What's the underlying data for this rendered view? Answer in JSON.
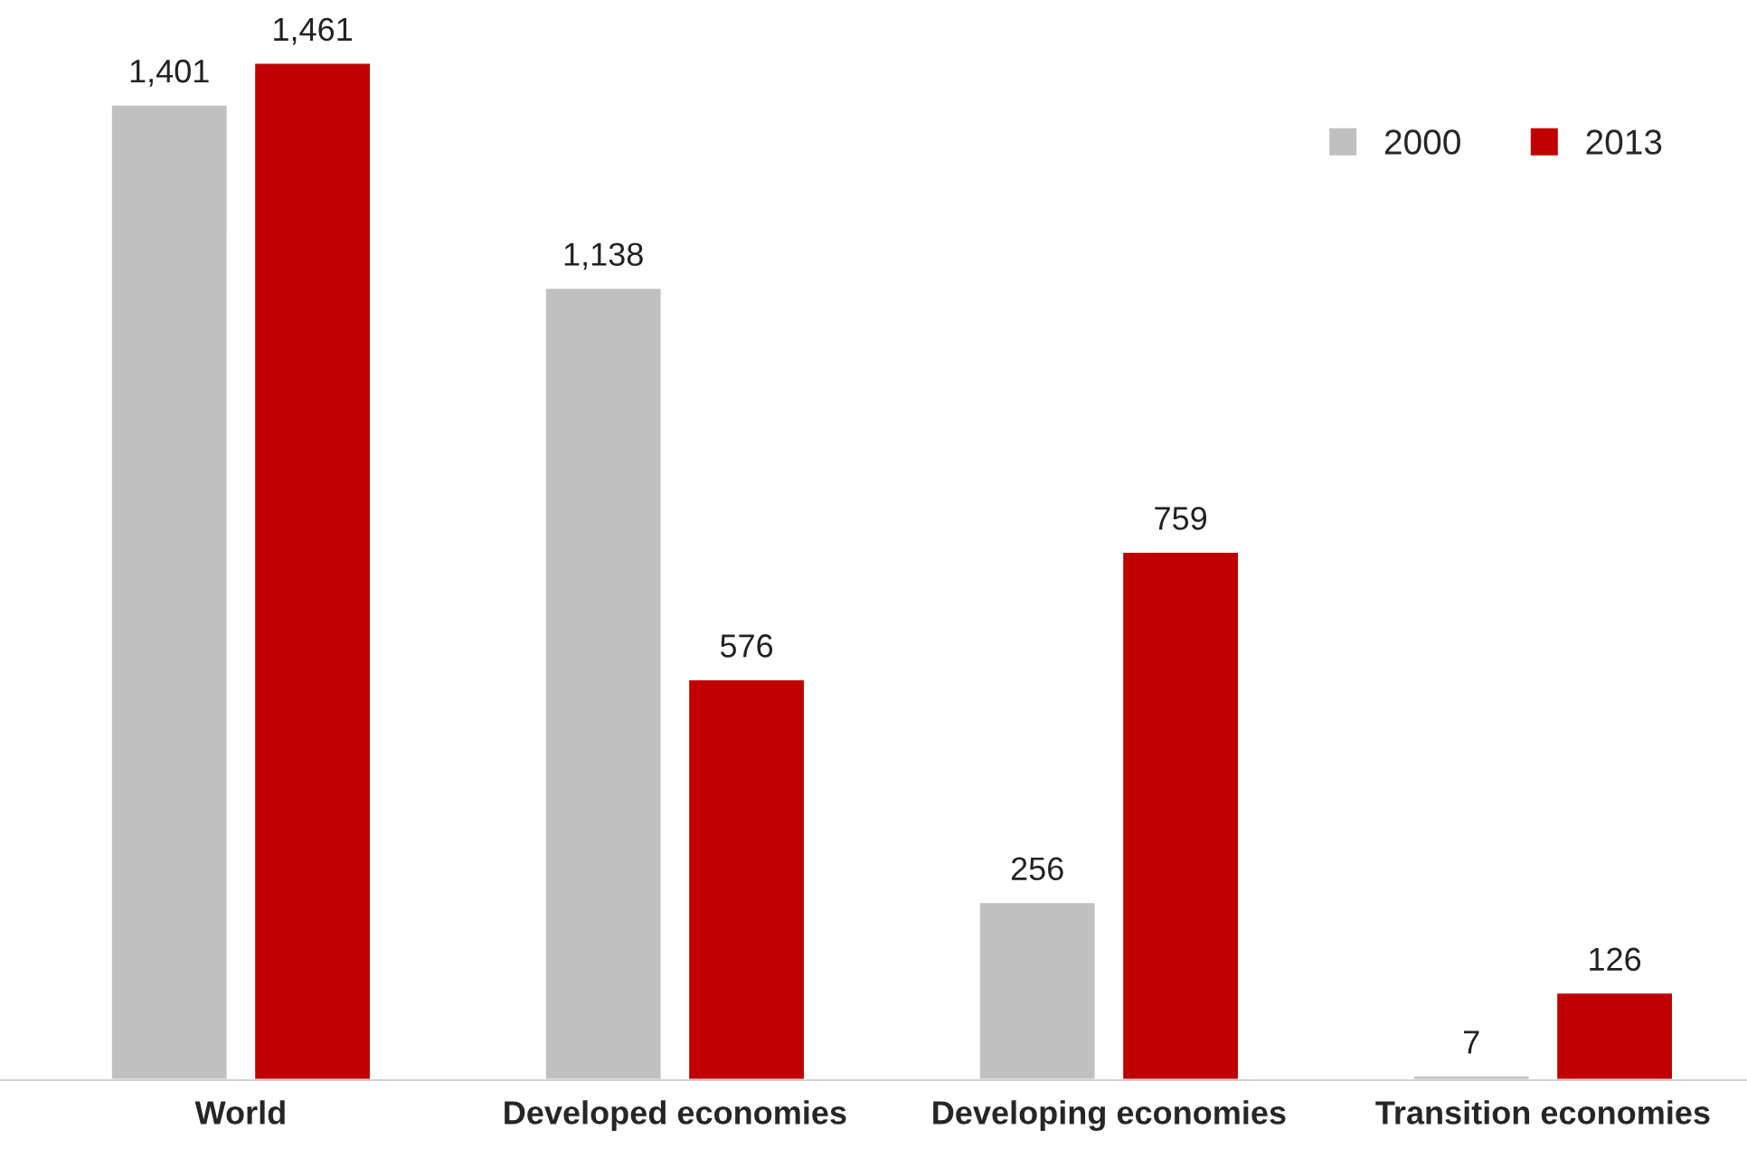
{
  "chart_data": {
    "type": "bar",
    "categories": [
      "World",
      "Developed economies",
      "Developing economies",
      "Transition economies"
    ],
    "series": [
      {
        "name": "2000",
        "color": "#c0c0c0",
        "values": [
          1401,
          1138,
          256,
          7
        ],
        "value_labels": [
          "1,401",
          "1,138",
          "256",
          "7"
        ]
      },
      {
        "name": "2013",
        "color": "#c00000",
        "values": [
          1461,
          576,
          759,
          126
        ],
        "value_labels": [
          "1,461",
          "576",
          "759",
          "126"
        ]
      }
    ],
    "tick_labels": "x",
    "grid": false,
    "legend": "top right"
  }
}
